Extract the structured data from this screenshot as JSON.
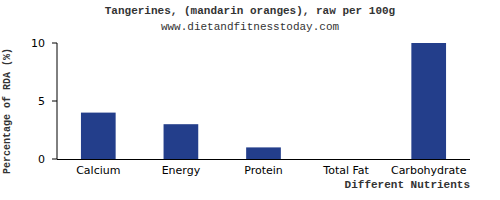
{
  "chart_data": {
    "type": "bar",
    "title": "Tangerines, (mandarin oranges), raw per 100g",
    "subtitle": "www.dietandfitnesstoday.com",
    "x_label": "Different Nutrients",
    "y_label": "Percentage of RDA (%)",
    "categories": [
      "Calcium",
      "Energy",
      "Protein",
      "Total Fat",
      "Carbohydrate"
    ],
    "values": [
      4,
      3,
      1,
      0,
      10
    ],
    "color": "#233e8b",
    "ylim": [
      0,
      10
    ],
    "yticks": [
      0,
      5,
      10
    ],
    "grid": false
  }
}
